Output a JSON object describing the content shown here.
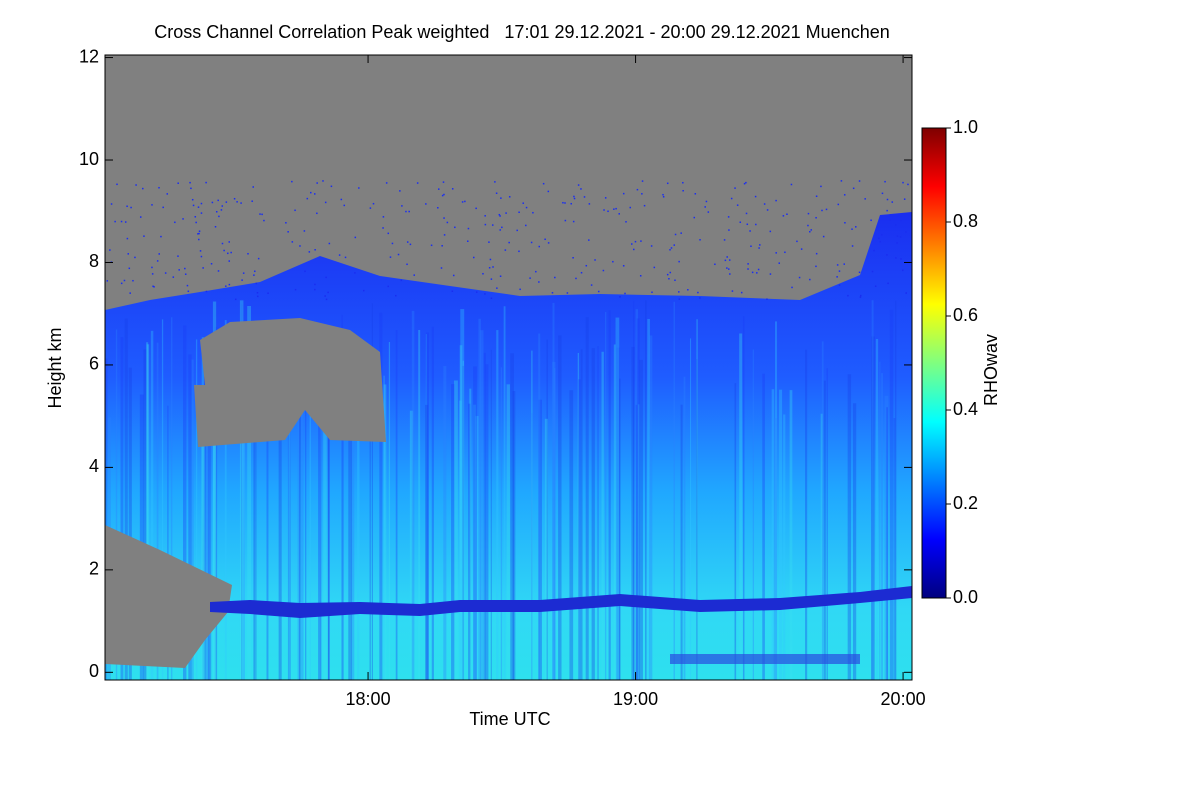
{
  "chart_data": {
    "type": "heatmap",
    "title": "Cross Channel Correlation Peak weighted   17:01 29.12.2021 - 20:00 29.12.2021 Muenchen",
    "x_label": "Time UTC",
    "y_label": "Height km",
    "xlim": [
      1021,
      1202
    ],
    "xticks": [
      {
        "value": 1080,
        "label": "18:00"
      },
      {
        "value": 1140,
        "label": "19:00"
      },
      {
        "value": 1200,
        "label": "20:00"
      }
    ],
    "ylim": [
      -0.15,
      12.05
    ],
    "yticks": [
      0,
      2,
      4,
      6,
      8,
      10,
      12
    ],
    "colorbar": {
      "label": "RHOwav",
      "lim": [
        0,
        1
      ],
      "ticks": [
        {
          "value": 0,
          "label": "0.0"
        },
        {
          "value": 0.2,
          "label": "0.2"
        },
        {
          "value": 0.4,
          "label": "0.4"
        },
        {
          "value": 0.6,
          "label": "0.6"
        },
        {
          "value": 0.8,
          "label": "0.8"
        },
        {
          "value": 1,
          "label": "1.0"
        }
      ]
    }
  }
}
